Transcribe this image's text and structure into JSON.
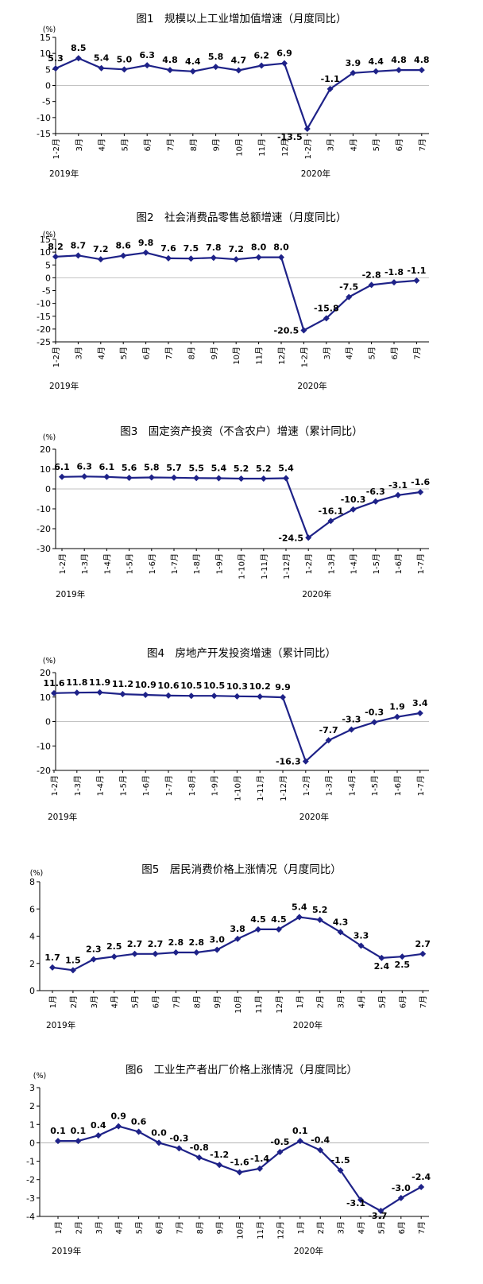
{
  "colors": {
    "series": "#1e2288",
    "axis": "#000000"
  },
  "chart_data": [
    {
      "type": "line",
      "title": "图1　规模以上工业增加值增速（月度同比）",
      "unit": "(%)",
      "categories": [
        "1-2月",
        "3月",
        "4月",
        "5月",
        "6月",
        "7月",
        "8月",
        "9月",
        "10月",
        "11月",
        "12月",
        "1-2月",
        "3月",
        "4月",
        "5月",
        "6月",
        "7月"
      ],
      "values": [
        5.3,
        8.5,
        5.4,
        5.0,
        6.3,
        4.8,
        4.4,
        5.8,
        4.7,
        6.2,
        6.9,
        -13.5,
        -1.1,
        3.9,
        4.4,
        4.8,
        4.8
      ],
      "value_labels": [
        "5.3",
        "8.5",
        "5.4",
        "5.0",
        "6.3",
        "4.8",
        "4.4",
        "5.8",
        "4.7",
        "6.2",
        "6.9",
        "-13.5",
        "-1.1",
        "3.9",
        "4.4",
        "4.8",
        "4.8"
      ],
      "ylim": [
        -15,
        15
      ],
      "yticks": [
        15,
        10,
        5,
        0,
        -5,
        -10,
        -15
      ],
      "years": [
        {
          "label": "2019年",
          "at": 0
        },
        {
          "label": "2020年",
          "at": 11
        }
      ]
    },
    {
      "type": "line",
      "title": "图2　社会消费品零售总额增速（月度同比）",
      "unit": "(%)",
      "categories": [
        "1-2月",
        "3月",
        "4月",
        "5月",
        "6月",
        "7月",
        "8月",
        "9月",
        "10月",
        "11月",
        "12月",
        "1-2月",
        "3月",
        "4月",
        "5月",
        "6月",
        "7月"
      ],
      "values": [
        8.2,
        8.7,
        7.2,
        8.6,
        9.8,
        7.6,
        7.5,
        7.8,
        7.2,
        8.0,
        8.0,
        -20.5,
        -15.8,
        -7.5,
        -2.8,
        -1.8,
        -1.1
      ],
      "value_labels": [
        "8.2",
        "8.7",
        "7.2",
        "8.6",
        "9.8",
        "7.6",
        "7.5",
        "7.8",
        "7.2",
        "8.0",
        "8.0",
        "-20.5",
        "-15.8",
        "-7.5",
        "-2.8",
        "-1.8",
        "-1.1"
      ],
      "ylim": [
        -25,
        15
      ],
      "yticks": [
        15,
        10,
        5,
        0,
        -5,
        -10,
        -15,
        -20,
        -25
      ],
      "years": [
        {
          "label": "2019年",
          "at": 0
        },
        {
          "label": "2020年",
          "at": 11
        }
      ]
    },
    {
      "type": "line",
      "title": "图3　固定资产投资（不含农户）增速（累计同比）",
      "unit": "(%)",
      "categories": [
        "1-2月",
        "1-3月",
        "1-4月",
        "1-5月",
        "1-6月",
        "1-7月",
        "1-8月",
        "1-9月",
        "1-10月",
        "1-11月",
        "1-12月",
        "1-2月",
        "1-3月",
        "1-4月",
        "1-5月",
        "1-6月",
        "1-7月"
      ],
      "values": [
        6.1,
        6.3,
        6.1,
        5.6,
        5.8,
        5.7,
        5.5,
        5.4,
        5.2,
        5.2,
        5.4,
        -24.5,
        -16.1,
        -10.3,
        -6.3,
        -3.1,
        -1.6
      ],
      "value_labels": [
        "6.1",
        "6.3",
        "6.1",
        "5.6",
        "5.8",
        "5.7",
        "5.5",
        "5.4",
        "5.2",
        "5.2",
        "5.4",
        "-24.5",
        "-16.1",
        "-10.3",
        "-6.3",
        "-3.1",
        "-1.6"
      ],
      "ylim": [
        -30,
        20
      ],
      "yticks": [
        20,
        10,
        0,
        -10,
        -20,
        -30
      ],
      "years": [
        {
          "label": "2019年",
          "at": 0
        },
        {
          "label": "2020年",
          "at": 11
        }
      ]
    },
    {
      "type": "line",
      "title": "图4　房地产开发投资增速（累计同比）",
      "unit": "(%)",
      "categories": [
        "1-2月",
        "1-3月",
        "1-4月",
        "1-5月",
        "1-6月",
        "1-7月",
        "1-8月",
        "1-9月",
        "1-10月",
        "1-11月",
        "1-12月",
        "1-2月",
        "1-3月",
        "1-4月",
        "1-5月",
        "1-6月",
        "1-7月"
      ],
      "values": [
        11.6,
        11.8,
        11.9,
        11.2,
        10.9,
        10.6,
        10.5,
        10.5,
        10.3,
        10.2,
        9.9,
        -16.3,
        -7.7,
        -3.3,
        -0.3,
        1.9,
        3.4
      ],
      "value_labels": [
        "11.6",
        "11.8",
        "11.9",
        "11.2",
        "10.9",
        "10.6",
        "10.5",
        "10.5",
        "10.3",
        "10.2",
        "9.9",
        "-16.3",
        "-7.7",
        "-3.3",
        "-0.3",
        "1.9",
        "3.4"
      ],
      "ylim": [
        -20,
        20
      ],
      "yticks": [
        20,
        10,
        0,
        -10,
        -20
      ],
      "years": [
        {
          "label": "2019年",
          "at": 0
        },
        {
          "label": "2020年",
          "at": 11
        }
      ]
    },
    {
      "type": "line",
      "title": "图5　居民消费价格上涨情况（月度同比）",
      "unit": "(%)",
      "categories": [
        "1月",
        "2月",
        "3月",
        "4月",
        "5月",
        "6月",
        "7月",
        "8月",
        "9月",
        "10月",
        "11月",
        "12月",
        "1月",
        "2月",
        "3月",
        "4月",
        "5月",
        "6月",
        "7月"
      ],
      "values": [
        1.7,
        1.5,
        2.3,
        2.5,
        2.7,
        2.7,
        2.8,
        2.8,
        3.0,
        3.8,
        4.5,
        4.5,
        5.4,
        5.2,
        4.3,
        3.3,
        2.4,
        2.5,
        2.7
      ],
      "value_labels": [
        "1.7",
        "1.5",
        "2.3",
        "2.5",
        "2.7",
        "2.7",
        "2.8",
        "2.8",
        "3.0",
        "3.8",
        "4.5",
        "4.5",
        "5.4",
        "5.2",
        "4.3",
        "3.3",
        "2.4",
        "2.5",
        "2.7"
      ],
      "ylim": [
        0,
        8
      ],
      "yticks": [
        8,
        6,
        4,
        2,
        0
      ],
      "years": [
        {
          "label": "2019年",
          "at": 0
        },
        {
          "label": "2020年",
          "at": 12
        }
      ]
    },
    {
      "type": "line",
      "title": "图6　工业生产者出厂价格上涨情况（月度同比）",
      "unit": "(%)",
      "categories": [
        "1月",
        "2月",
        "3月",
        "4月",
        "5月",
        "6月",
        "7月",
        "8月",
        "9月",
        "10月",
        "11月",
        "12月",
        "1月",
        "2月",
        "3月",
        "4月",
        "5月",
        "6月",
        "7月"
      ],
      "values": [
        0.1,
        0.1,
        0.4,
        0.9,
        0.6,
        0.0,
        -0.3,
        -0.8,
        -1.2,
        -1.6,
        -1.4,
        -0.5,
        0.1,
        -0.4,
        -1.5,
        -3.1,
        -3.7,
        -3.0,
        -2.4
      ],
      "value_labels": [
        "0.1",
        "0.1",
        "0.4",
        "0.9",
        "0.6",
        "0.0",
        "-0.3",
        "-0.8",
        "-1.2",
        "-1.6",
        "-1.4",
        "-0.5",
        "0.1",
        "-0.4",
        "-1.5",
        "-3.1",
        "-3.7",
        "-3.0",
        "-2.4"
      ],
      "ylim": [
        -4,
        3
      ],
      "yticks": [
        3,
        2,
        1,
        0,
        -1,
        -2,
        -3,
        -4
      ],
      "years": [
        {
          "label": "2019年",
          "at": 0
        },
        {
          "label": "2020年",
          "at": 12
        }
      ]
    }
  ]
}
